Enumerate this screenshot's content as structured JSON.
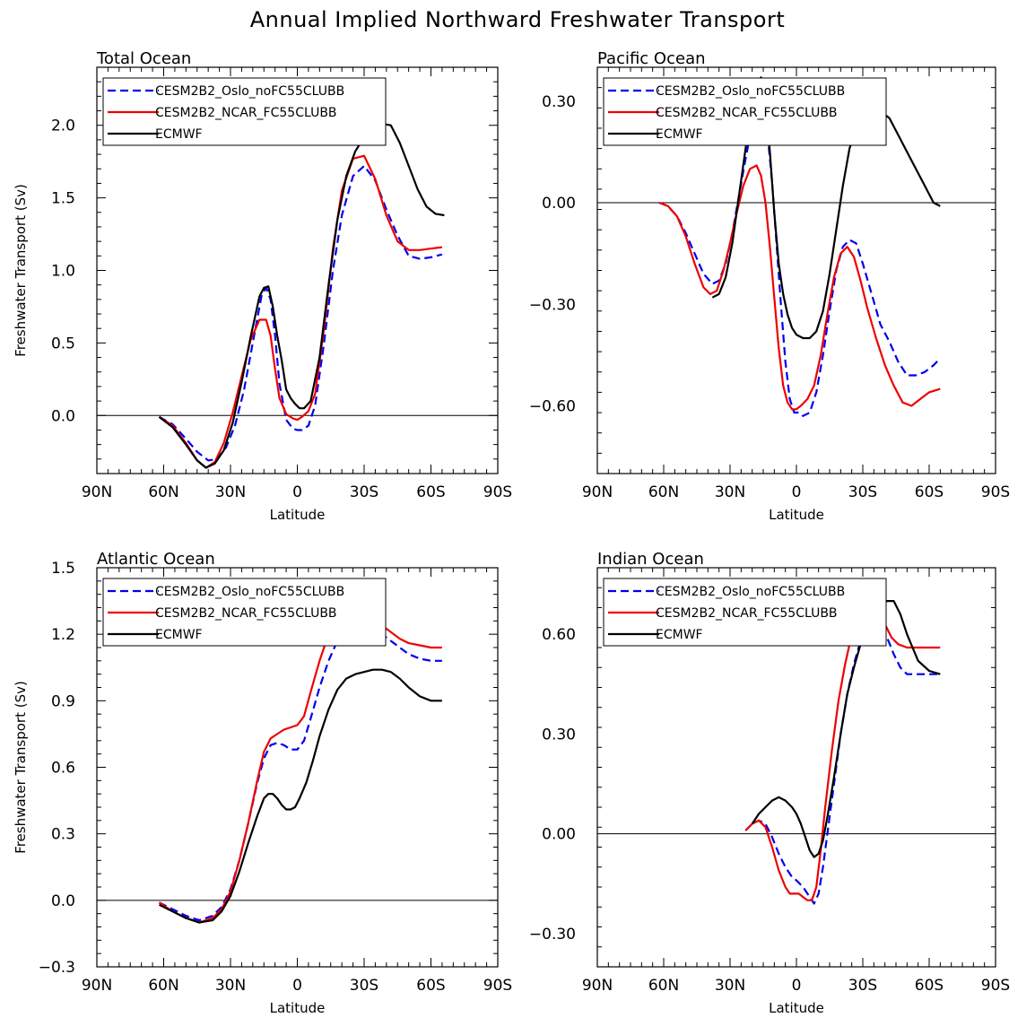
{
  "title": "Annual Implied Northward Freshwater Transport",
  "colors": {
    "oslo": "#0000ee",
    "ncar": "#ee0000",
    "ecmwf": "#000000"
  },
  "chart_data": [
    {
      "type": "line",
      "title": "Total Ocean",
      "xlabel": "Latitude",
      "ylabel": "Freshwater Transport (Sv)",
      "xlim": [
        90,
        -90
      ],
      "xticks": [
        90,
        60,
        30,
        0,
        -30,
        -60,
        -90
      ],
      "xtick_labels": [
        "90N",
        "60N",
        "30N",
        "0",
        "30S",
        "60S",
        "90S"
      ],
      "ylim": [
        -0.4,
        2.4
      ],
      "yticks": [
        0.0,
        0.5,
        1.0,
        1.5,
        2.0
      ],
      "ytick_labels": [
        "0.0",
        "0.5",
        "1.0",
        "1.5",
        "2.0"
      ],
      "legend": [
        "CESM2B2_Oslo_noFC55CLUBB",
        "CESM2B2_NCAR_FC55CLUBB",
        "ECMWF"
      ],
      "series": [
        {
          "name": "CESM2B2_Oslo_noFC55CLUBB",
          "style": "dashed",
          "x": [
            62,
            56,
            50,
            45,
            40,
            36,
            32,
            28,
            24,
            20,
            16,
            14,
            12,
            10,
            8,
            5,
            2,
            0,
            -2,
            -5,
            -8,
            -12,
            -16,
            -20,
            -25,
            -30,
            -35,
            -40,
            -45,
            -50,
            -55,
            -60,
            -65
          ],
          "y": [
            -0.01,
            -0.06,
            -0.16,
            -0.25,
            -0.31,
            -0.3,
            -0.22,
            -0.07,
            0.17,
            0.5,
            0.83,
            0.88,
            0.8,
            0.55,
            0.22,
            -0.03,
            -0.09,
            -0.1,
            -0.1,
            -0.07,
            0.07,
            0.5,
            1.0,
            1.38,
            1.65,
            1.72,
            1.62,
            1.42,
            1.24,
            1.1,
            1.08,
            1.09,
            1.11
          ]
        },
        {
          "name": "CESM2B2_NCAR_FC55CLUBB",
          "style": "solid",
          "x": [
            62,
            56,
            50,
            45,
            41,
            37,
            33,
            29,
            25,
            21,
            17,
            14,
            12,
            10,
            8,
            5,
            2,
            0,
            -2,
            -5,
            -8,
            -12,
            -16,
            -20,
            -25,
            -30,
            -35,
            -40,
            -45,
            -50,
            -55,
            -60,
            -65
          ],
          "y": [
            -0.01,
            -0.07,
            -0.19,
            -0.31,
            -0.36,
            -0.32,
            -0.19,
            0.02,
            0.27,
            0.52,
            0.66,
            0.66,
            0.55,
            0.32,
            0.12,
            0.01,
            -0.02,
            -0.03,
            -0.01,
            0.03,
            0.15,
            0.6,
            1.15,
            1.55,
            1.77,
            1.79,
            1.63,
            1.38,
            1.2,
            1.14,
            1.14,
            1.15,
            1.16
          ]
        },
        {
          "name": "ECMWF",
          "style": "solid",
          "x": [
            62,
            56,
            50,
            45,
            41,
            37,
            33,
            29,
            25,
            21,
            17,
            15,
            13,
            11,
            9,
            7,
            5,
            3,
            1,
            -1,
            -3,
            -6,
            -10,
            -14,
            -18,
            -22,
            -26,
            -30,
            -34,
            -38,
            -42,
            -46,
            -50,
            -54,
            -58,
            -62,
            -66
          ],
          "y": [
            -0.01,
            -0.08,
            -0.2,
            -0.31,
            -0.36,
            -0.33,
            -0.24,
            -0.05,
            0.23,
            0.54,
            0.82,
            0.88,
            0.89,
            0.75,
            0.55,
            0.38,
            0.18,
            0.12,
            0.08,
            0.05,
            0.05,
            0.1,
            0.4,
            0.9,
            1.35,
            1.65,
            1.82,
            1.92,
            1.98,
            2.01,
            2.0,
            1.88,
            1.72,
            1.56,
            1.44,
            1.39,
            1.38
          ]
        }
      ]
    },
    {
      "type": "line",
      "title": "Pacific Ocean",
      "xlabel": "Latitude",
      "ylabel": "",
      "xlim": [
        90,
        -90
      ],
      "xticks": [
        90,
        60,
        30,
        0,
        -30,
        -60,
        -90
      ],
      "xtick_labels": [
        "90N",
        "60N",
        "30N",
        "0",
        "30S",
        "60S",
        "90S"
      ],
      "ylim": [
        -0.8,
        0.4
      ],
      "yticks": [
        -0.6,
        -0.3,
        0.0,
        0.3
      ],
      "ytick_labels": [
        "−0.60",
        "−0.30",
        "0.00",
        "0.30"
      ],
      "legend": [
        "CESM2B2_Oslo_noFC55CLUBB",
        "CESM2B2_NCAR_FC55CLUBB",
        "ECMWF"
      ],
      "series": [
        {
          "name": "CESM2B2_Oslo_noFC55CLUBB",
          "style": "dashed",
          "x": [
            62,
            58,
            54,
            50,
            46,
            42,
            38,
            35,
            32,
            29,
            26,
            23,
            20,
            17,
            15,
            13,
            11,
            9,
            7,
            5,
            3,
            1,
            -1,
            -3,
            -6,
            -9,
            -12,
            -15,
            -18,
            -21,
            -24,
            -27,
            -30,
            -34,
            -38,
            -42,
            -46,
            -50,
            -54,
            -58,
            -62,
            -65
          ],
          "y": [
            0.0,
            -0.01,
            -0.04,
            -0.09,
            -0.15,
            -0.21,
            -0.24,
            -0.23,
            -0.18,
            -0.09,
            0.02,
            0.13,
            0.23,
            0.28,
            0.27,
            0.2,
            0.06,
            -0.12,
            -0.3,
            -0.47,
            -0.58,
            -0.62,
            -0.62,
            -0.63,
            -0.62,
            -0.56,
            -0.45,
            -0.32,
            -0.2,
            -0.13,
            -0.11,
            -0.12,
            -0.18,
            -0.27,
            -0.36,
            -0.41,
            -0.47,
            -0.51,
            -0.51,
            -0.5,
            -0.48,
            -0.46
          ]
        },
        {
          "name": "CESM2B2_NCAR_FC55CLUBB",
          "style": "solid",
          "x": [
            62,
            58,
            54,
            50,
            46,
            42,
            39,
            36,
            33,
            30,
            27,
            24,
            21,
            18,
            16,
            14,
            12,
            10,
            8,
            6,
            4,
            2,
            0,
            -2,
            -5,
            -8,
            -11,
            -14,
            -17,
            -20,
            -23,
            -26,
            -29,
            -32,
            -36,
            -40,
            -44,
            -48,
            -52,
            -56,
            -60,
            -65
          ],
          "y": [
            0.0,
            -0.01,
            -0.04,
            -0.1,
            -0.18,
            -0.25,
            -0.27,
            -0.26,
            -0.2,
            -0.12,
            -0.03,
            0.05,
            0.1,
            0.11,
            0.08,
            0.0,
            -0.13,
            -0.28,
            -0.43,
            -0.54,
            -0.59,
            -0.61,
            -0.61,
            -0.6,
            -0.58,
            -0.54,
            -0.45,
            -0.33,
            -0.22,
            -0.15,
            -0.13,
            -0.16,
            -0.23,
            -0.31,
            -0.4,
            -0.48,
            -0.54,
            -0.59,
            -0.6,
            -0.58,
            -0.56,
            -0.55
          ]
        },
        {
          "name": "ECMWF",
          "style": "solid",
          "x": [
            38,
            35,
            32,
            29,
            26,
            23,
            20,
            18,
            16,
            14,
            12,
            10,
            8,
            6,
            4,
            2,
            0,
            -3,
            -6,
            -9,
            -12,
            -15,
            -18,
            -21,
            -24,
            -27,
            -30,
            -34,
            -38,
            -42,
            -46,
            -50,
            -54,
            -58,
            -62,
            -65
          ],
          "y": [
            -0.28,
            -0.27,
            -0.22,
            -0.12,
            0.02,
            0.16,
            0.29,
            0.35,
            0.37,
            0.3,
            0.15,
            -0.03,
            -0.18,
            -0.27,
            -0.33,
            -0.37,
            -0.39,
            -0.4,
            -0.4,
            -0.38,
            -0.32,
            -0.21,
            -0.08,
            0.05,
            0.16,
            0.22,
            0.25,
            0.27,
            0.27,
            0.25,
            0.2,
            0.15,
            0.1,
            0.05,
            0.0,
            -0.01
          ]
        }
      ]
    },
    {
      "type": "line",
      "title": "Atlantic Ocean",
      "xlabel": "Latitude",
      "ylabel": "Freshwater Transport (Sv)",
      "xlim": [
        90,
        -90
      ],
      "xticks": [
        90,
        60,
        30,
        0,
        -30,
        -60,
        -90
      ],
      "xtick_labels": [
        "90N",
        "60N",
        "30N",
        "0",
        "30S",
        "60S",
        "90S"
      ],
      "ylim": [
        -0.3,
        1.5
      ],
      "yticks": [
        -0.3,
        0.0,
        0.3,
        0.6,
        0.9,
        1.2,
        1.5
      ],
      "ytick_labels": [
        "−0.3",
        "0.0",
        "0.3",
        "0.6",
        "0.9",
        "1.2",
        "1.5"
      ],
      "legend": [
        "CESM2B2_Oslo_noFC55CLUBB",
        "CESM2B2_NCAR_FC55CLUBB",
        "ECMWF"
      ],
      "series": [
        {
          "name": "CESM2B2_Oslo_noFC55CLUBB",
          "style": "dashed",
          "x": [
            62,
            56,
            50,
            44,
            38,
            34,
            30,
            26,
            22,
            18,
            15,
            12,
            9,
            6,
            3,
            0,
            -3,
            -6,
            -10,
            -14,
            -18,
            -22,
            -26,
            -30,
            -34,
            -38,
            -42,
            -46,
            -50,
            -55,
            -60,
            -65
          ],
          "y": [
            -0.01,
            -0.04,
            -0.07,
            -0.09,
            -0.07,
            -0.03,
            0.05,
            0.18,
            0.35,
            0.53,
            0.64,
            0.7,
            0.71,
            0.7,
            0.68,
            0.68,
            0.72,
            0.82,
            0.96,
            1.08,
            1.17,
            1.23,
            1.25,
            1.25,
            1.23,
            1.2,
            1.17,
            1.14,
            1.11,
            1.09,
            1.08,
            1.08
          ]
        },
        {
          "name": "CESM2B2_NCAR_FC55CLUBB",
          "style": "solid",
          "x": [
            62,
            56,
            50,
            44,
            38,
            34,
            30,
            26,
            22,
            18,
            15,
            12,
            9,
            6,
            3,
            0,
            -3,
            -6,
            -10,
            -14,
            -18,
            -22,
            -26,
            -30,
            -34,
            -38,
            -42,
            -46,
            -50,
            -55,
            -60,
            -65
          ],
          "y": [
            -0.01,
            -0.05,
            -0.08,
            -0.1,
            -0.08,
            -0.04,
            0.04,
            0.18,
            0.35,
            0.54,
            0.67,
            0.73,
            0.75,
            0.77,
            0.78,
            0.79,
            0.83,
            0.94,
            1.08,
            1.2,
            1.28,
            1.31,
            1.31,
            1.29,
            1.26,
            1.24,
            1.21,
            1.18,
            1.16,
            1.15,
            1.14,
            1.14
          ]
        },
        {
          "name": "ECMWF",
          "style": "solid",
          "x": [
            62,
            56,
            50,
            44,
            38,
            34,
            30,
            26,
            22,
            18,
            15,
            13,
            11,
            9,
            7,
            5,
            3,
            1,
            -1,
            -4,
            -7,
            -10,
            -14,
            -18,
            -22,
            -26,
            -30,
            -34,
            -38,
            -42,
            -46,
            -50,
            -55,
            -60,
            -65
          ],
          "y": [
            -0.02,
            -0.05,
            -0.08,
            -0.1,
            -0.09,
            -0.05,
            0.02,
            0.13,
            0.26,
            0.38,
            0.46,
            0.48,
            0.48,
            0.46,
            0.43,
            0.41,
            0.41,
            0.42,
            0.46,
            0.53,
            0.63,
            0.74,
            0.86,
            0.95,
            1.0,
            1.02,
            1.03,
            1.04,
            1.04,
            1.03,
            1.0,
            0.96,
            0.92,
            0.9,
            0.9
          ]
        }
      ]
    },
    {
      "type": "line",
      "title": "Indian Ocean",
      "xlabel": "Latitude",
      "ylabel": "",
      "xlim": [
        90,
        -90
      ],
      "xticks": [
        90,
        60,
        30,
        0,
        -30,
        -60,
        -90
      ],
      "xtick_labels": [
        "90N",
        "60N",
        "30N",
        "0",
        "30S",
        "60S",
        "90S"
      ],
      "ylim": [
        -0.4,
        0.8
      ],
      "yticks": [
        -0.3,
        0.0,
        0.3,
        0.6
      ],
      "ytick_labels": [
        "−0.30",
        "0.00",
        "0.30",
        "0.60"
      ],
      "legend": [
        "CESM2B2_Oslo_noFC55CLUBB",
        "CESM2B2_NCAR_FC55CLUBB",
        "ECMWF"
      ],
      "series": [
        {
          "name": "CESM2B2_Oslo_noFC55CLUBB",
          "style": "dashed",
          "x": [
            23,
            20,
            17,
            14,
            11,
            8,
            5,
            2,
            0,
            -3,
            -6,
            -8,
            -10,
            -12,
            -14,
            -17,
            -20,
            -23,
            -26,
            -29,
            -32,
            -35,
            -38,
            -41,
            -44,
            -47,
            -50,
            -55,
            -60,
            -65
          ],
          "y": [
            0.01,
            0.03,
            0.04,
            0.03,
            -0.01,
            -0.06,
            -0.1,
            -0.13,
            -0.14,
            -0.16,
            -0.19,
            -0.21,
            -0.18,
            -0.1,
            0.0,
            0.15,
            0.3,
            0.42,
            0.51,
            0.58,
            0.63,
            0.65,
            0.63,
            0.59,
            0.54,
            0.5,
            0.48,
            0.48,
            0.48,
            0.48
          ]
        },
        {
          "name": "CESM2B2_NCAR_FC55CLUBB",
          "style": "solid",
          "x": [
            23,
            20,
            17,
            14,
            11,
            8,
            5,
            3,
            1,
            -1,
            -3,
            -5,
            -7,
            -9,
            -11,
            -13,
            -16,
            -19,
            -22,
            -25,
            -28,
            -31,
            -34,
            -37,
            -40,
            -43,
            -46,
            -50,
            -55,
            -60,
            -65
          ],
          "y": [
            0.01,
            0.03,
            0.04,
            0.02,
            -0.04,
            -0.11,
            -0.16,
            -0.18,
            -0.18,
            -0.18,
            -0.19,
            -0.2,
            -0.2,
            -0.16,
            -0.05,
            0.08,
            0.25,
            0.4,
            0.51,
            0.6,
            0.66,
            0.7,
            0.71,
            0.68,
            0.63,
            0.59,
            0.57,
            0.56,
            0.56,
            0.56,
            0.56
          ]
        },
        {
          "name": "ECMWF",
          "style": "solid",
          "x": [
            20,
            17,
            14,
            11,
            8,
            5,
            2,
            0,
            -2,
            -4,
            -6,
            -8,
            -10,
            -12,
            -14,
            -17,
            -20,
            -23,
            -26,
            -29,
            -32,
            -35,
            -38,
            -41,
            -44,
            -47,
            -50,
            -55,
            -60,
            -65
          ],
          "y": [
            0.03,
            0.06,
            0.08,
            0.1,
            0.11,
            0.1,
            0.08,
            0.06,
            0.03,
            -0.01,
            -0.05,
            -0.07,
            -0.06,
            -0.02,
            0.05,
            0.17,
            0.3,
            0.42,
            0.5,
            0.57,
            0.62,
            0.66,
            0.69,
            0.7,
            0.7,
            0.66,
            0.6,
            0.52,
            0.49,
            0.48
          ]
        }
      ]
    }
  ]
}
